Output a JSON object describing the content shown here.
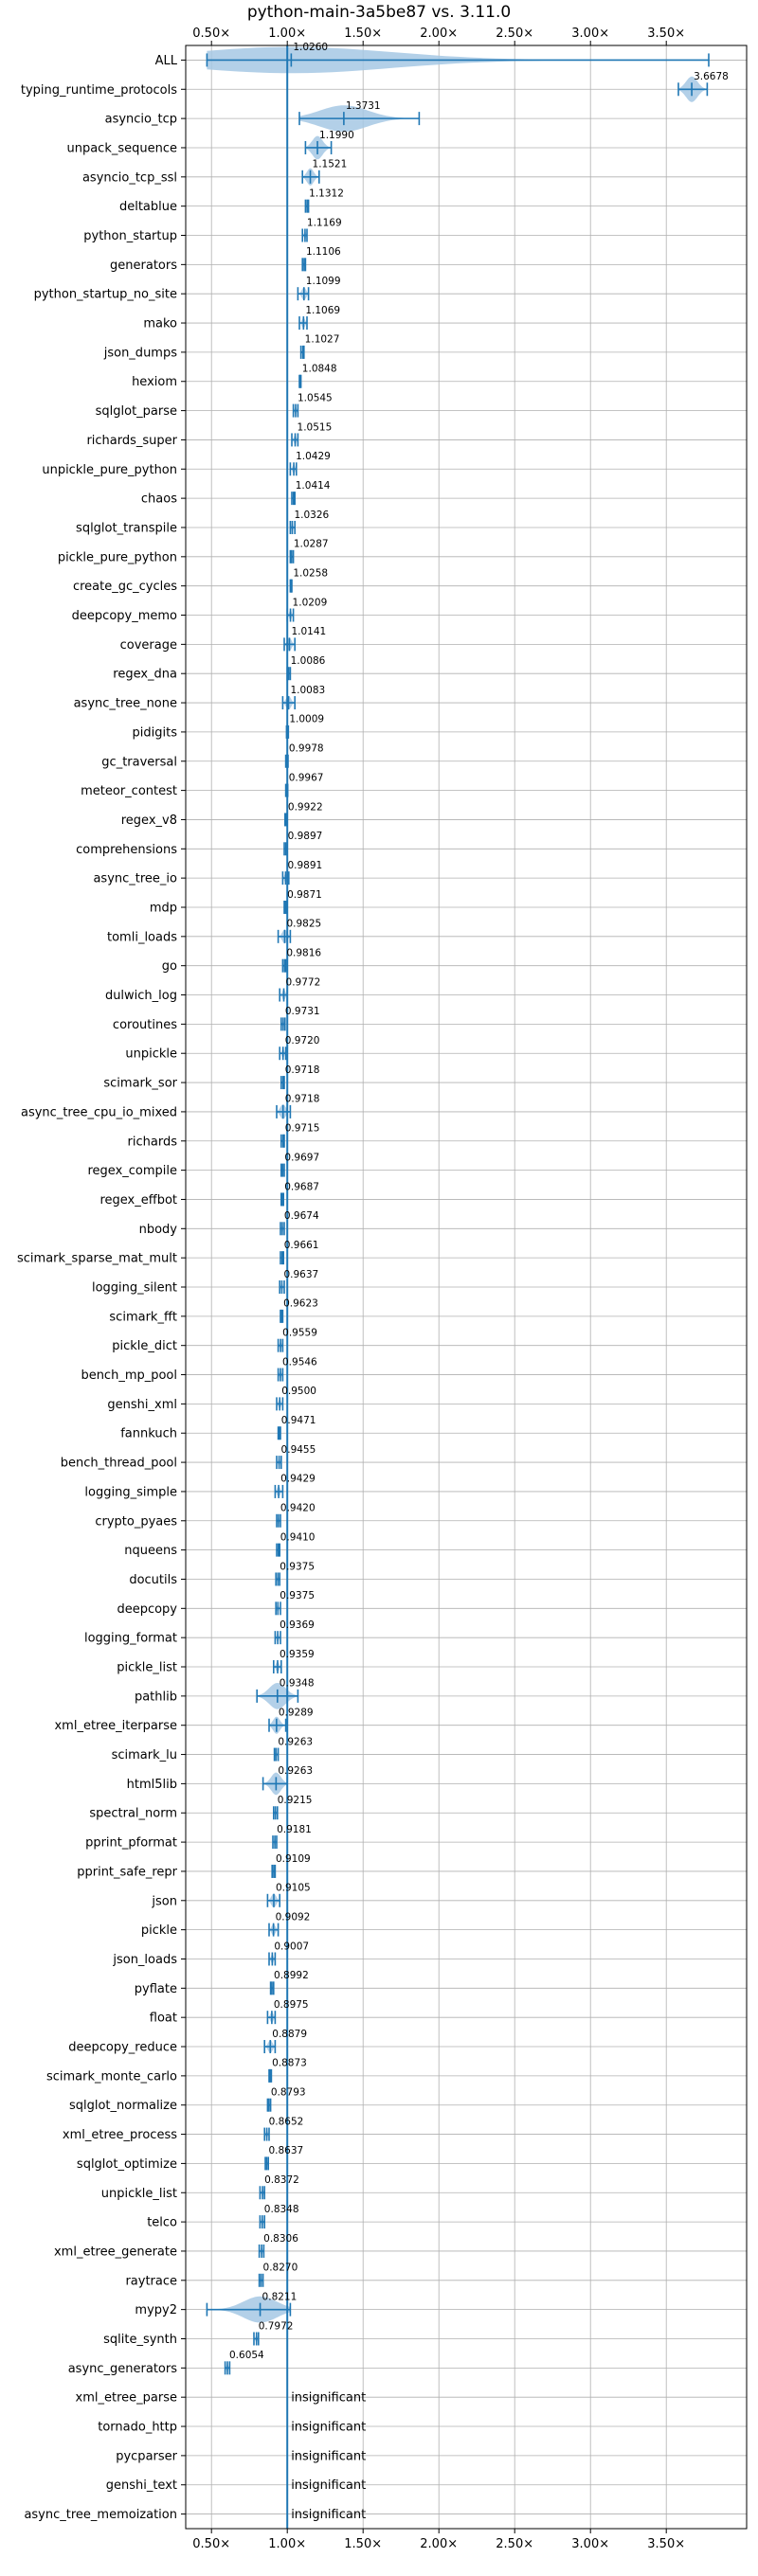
{
  "chart_data": {
    "type": "violin",
    "title": "python-main-3a5be87 vs. 3.11.0",
    "xlabel": "",
    "ylabel": "",
    "x_ticks": [
      0.5,
      1.0,
      1.5,
      2.0,
      2.5,
      3.0,
      3.5
    ],
    "x_tick_labels": [
      "0.50×",
      "1.00×",
      "1.50×",
      "2.00×",
      "2.50×",
      "3.00×",
      "3.50×"
    ],
    "xlim": [
      0.33,
      4.03
    ],
    "reference_line": 1.0,
    "grid": true,
    "colors": {
      "series": "#1f77b4",
      "violin_fill": "#a6c8e4",
      "grid": "#b0b0b0"
    },
    "benchmarks": [
      {
        "name": "ALL",
        "label": "1.0260",
        "median": 1.026,
        "min": 0.47,
        "max": 3.78
      },
      {
        "name": "typing_runtime_protocols",
        "label": "3.6678",
        "median": 3.668,
        "min": 3.58,
        "max": 3.77
      },
      {
        "name": "asyncio_tcp",
        "label": "1.3731",
        "median": 1.373,
        "min": 1.08,
        "max": 1.87
      },
      {
        "name": "unpack_sequence",
        "label": "1.1990",
        "median": 1.199,
        "min": 1.12,
        "max": 1.29
      },
      {
        "name": "asyncio_tcp_ssl",
        "label": "1.1521",
        "median": 1.152,
        "min": 1.1,
        "max": 1.21
      },
      {
        "name": "deltablue",
        "label": "1.1312",
        "median": 1.131,
        "min": 1.12,
        "max": 1.14
      },
      {
        "name": "python_startup",
        "label": "1.1169",
        "median": 1.117,
        "min": 1.1,
        "max": 1.13
      },
      {
        "name": "generators",
        "label": "1.1106",
        "median": 1.111,
        "min": 1.1,
        "max": 1.12
      },
      {
        "name": "python_startup_no_site",
        "label": "1.1099",
        "median": 1.11,
        "min": 1.07,
        "max": 1.14
      },
      {
        "name": "mako",
        "label": "1.1069",
        "median": 1.107,
        "min": 1.08,
        "max": 1.13
      },
      {
        "name": "json_dumps",
        "label": "1.1027",
        "median": 1.103,
        "min": 1.09,
        "max": 1.11
      },
      {
        "name": "hexiom",
        "label": "1.0848",
        "median": 1.085,
        "min": 1.08,
        "max": 1.09
      },
      {
        "name": "sqlglot_parse",
        "label": "1.0545",
        "median": 1.055,
        "min": 1.04,
        "max": 1.07
      },
      {
        "name": "richards_super",
        "label": "1.0515",
        "median": 1.052,
        "min": 1.03,
        "max": 1.07
      },
      {
        "name": "unpickle_pure_python",
        "label": "1.0429",
        "median": 1.043,
        "min": 1.02,
        "max": 1.06
      },
      {
        "name": "chaos",
        "label": "1.0414",
        "median": 1.041,
        "min": 1.03,
        "max": 1.05
      },
      {
        "name": "sqlglot_transpile",
        "label": "1.0326",
        "median": 1.033,
        "min": 1.02,
        "max": 1.05
      },
      {
        "name": "pickle_pure_python",
        "label": "1.0287",
        "median": 1.029,
        "min": 1.02,
        "max": 1.04
      },
      {
        "name": "create_gc_cycles",
        "label": "1.0258",
        "median": 1.026,
        "min": 1.02,
        "max": 1.03
      },
      {
        "name": "deepcopy_memo",
        "label": "1.0209",
        "median": 1.021,
        "min": 1.0,
        "max": 1.04
      },
      {
        "name": "coverage",
        "label": "1.0141",
        "median": 1.014,
        "min": 0.98,
        "max": 1.05
      },
      {
        "name": "regex_dna",
        "label": "1.0086",
        "median": 1.009,
        "min": 1.0,
        "max": 1.02
      },
      {
        "name": "async_tree_none",
        "label": "1.0083",
        "median": 1.008,
        "min": 0.97,
        "max": 1.05
      },
      {
        "name": "pidigits",
        "label": "1.0009",
        "median": 1.001,
        "min": 0.995,
        "max": 1.007
      },
      {
        "name": "gc_traversal",
        "label": "0.9978",
        "median": 0.998,
        "min": 0.99,
        "max": 1.005
      },
      {
        "name": "meteor_contest",
        "label": "0.9967",
        "median": 0.997,
        "min": 0.99,
        "max": 1.003
      },
      {
        "name": "regex_v8",
        "label": "0.9922",
        "median": 0.992,
        "min": 0.985,
        "max": 1.0
      },
      {
        "name": "comprehensions",
        "label": "0.9897",
        "median": 0.99,
        "min": 0.98,
        "max": 1.0
      },
      {
        "name": "async_tree_io",
        "label": "0.9891",
        "median": 0.989,
        "min": 0.97,
        "max": 1.01
      },
      {
        "name": "mdp",
        "label": "0.9871",
        "median": 0.987,
        "min": 0.98,
        "max": 0.995
      },
      {
        "name": "tomli_loads",
        "label": "0.9825",
        "median": 0.983,
        "min": 0.94,
        "max": 1.02
      },
      {
        "name": "go",
        "label": "0.9816",
        "median": 0.982,
        "min": 0.97,
        "max": 0.99
      },
      {
        "name": "dulwich_log",
        "label": "0.9772",
        "median": 0.977,
        "min": 0.95,
        "max": 1.0
      },
      {
        "name": "coroutines",
        "label": "0.9731",
        "median": 0.973,
        "min": 0.96,
        "max": 0.985
      },
      {
        "name": "unpickle",
        "label": "0.9720",
        "median": 0.972,
        "min": 0.95,
        "max": 0.99
      },
      {
        "name": "scimark_sor",
        "label": "0.9718",
        "median": 0.972,
        "min": 0.96,
        "max": 0.98
      },
      {
        "name": "async_tree_cpu_io_mixed",
        "label": "0.9718",
        "median": 0.972,
        "min": 0.93,
        "max": 1.02
      },
      {
        "name": "richards",
        "label": "0.9715",
        "median": 0.972,
        "min": 0.96,
        "max": 0.98
      },
      {
        "name": "regex_compile",
        "label": "0.9697",
        "median": 0.97,
        "min": 0.96,
        "max": 0.98
      },
      {
        "name": "regex_effbot",
        "label": "0.9687",
        "median": 0.969,
        "min": 0.96,
        "max": 0.975
      },
      {
        "name": "nbody",
        "label": "0.9674",
        "median": 0.967,
        "min": 0.955,
        "max": 0.98
      },
      {
        "name": "scimark_sparse_mat_mult",
        "label": "0.9661",
        "median": 0.966,
        "min": 0.955,
        "max": 0.975
      },
      {
        "name": "logging_silent",
        "label": "0.9637",
        "median": 0.964,
        "min": 0.95,
        "max": 0.98
      },
      {
        "name": "scimark_fft",
        "label": "0.9623",
        "median": 0.962,
        "min": 0.955,
        "max": 0.97
      },
      {
        "name": "pickle_dict",
        "label": "0.9559",
        "median": 0.956,
        "min": 0.94,
        "max": 0.97
      },
      {
        "name": "bench_mp_pool",
        "label": "0.9546",
        "median": 0.955,
        "min": 0.94,
        "max": 0.97
      },
      {
        "name": "genshi_xml",
        "label": "0.9500",
        "median": 0.95,
        "min": 0.93,
        "max": 0.97
      },
      {
        "name": "fannkuch",
        "label": "0.9471",
        "median": 0.947,
        "min": 0.94,
        "max": 0.955
      },
      {
        "name": "bench_thread_pool",
        "label": "0.9455",
        "median": 0.946,
        "min": 0.93,
        "max": 0.96
      },
      {
        "name": "logging_simple",
        "label": "0.9429",
        "median": 0.943,
        "min": 0.92,
        "max": 0.97
      },
      {
        "name": "crypto_pyaes",
        "label": "0.9420",
        "median": 0.942,
        "min": 0.93,
        "max": 0.955
      },
      {
        "name": "nqueens",
        "label": "0.9410",
        "median": 0.941,
        "min": 0.93,
        "max": 0.95
      },
      {
        "name": "docutils",
        "label": "0.9375",
        "median": 0.938,
        "min": 0.925,
        "max": 0.95
      },
      {
        "name": "deepcopy",
        "label": "0.9375",
        "median": 0.938,
        "min": 0.925,
        "max": 0.955
      },
      {
        "name": "logging_format",
        "label": "0.9369",
        "median": 0.937,
        "min": 0.92,
        "max": 0.955
      },
      {
        "name": "pickle_list",
        "label": "0.9359",
        "median": 0.936,
        "min": 0.91,
        "max": 0.96
      },
      {
        "name": "pathlib",
        "label": "0.9348",
        "median": 0.935,
        "min": 0.8,
        "max": 1.07
      },
      {
        "name": "xml_etree_iterparse",
        "label": "0.9289",
        "median": 0.929,
        "min": 0.88,
        "max": 0.99
      },
      {
        "name": "scimark_lu",
        "label": "0.9263",
        "median": 0.926,
        "min": 0.915,
        "max": 0.94
      },
      {
        "name": "html5lib",
        "label": "0.9263",
        "median": 0.926,
        "min": 0.84,
        "max": 1.0
      },
      {
        "name": "spectral_norm",
        "label": "0.9215",
        "median": 0.922,
        "min": 0.91,
        "max": 0.935
      },
      {
        "name": "pprint_pformat",
        "label": "0.9181",
        "median": 0.918,
        "min": 0.905,
        "max": 0.93
      },
      {
        "name": "pprint_safe_repr",
        "label": "0.9109",
        "median": 0.911,
        "min": 0.9,
        "max": 0.92
      },
      {
        "name": "json",
        "label": "0.9105",
        "median": 0.911,
        "min": 0.87,
        "max": 0.95
      },
      {
        "name": "pickle",
        "label": "0.9092",
        "median": 0.909,
        "min": 0.88,
        "max": 0.94
      },
      {
        "name": "json_loads",
        "label": "0.9007",
        "median": 0.901,
        "min": 0.88,
        "max": 0.92
      },
      {
        "name": "pyflate",
        "label": "0.8992",
        "median": 0.899,
        "min": 0.89,
        "max": 0.91
      },
      {
        "name": "float",
        "label": "0.8975",
        "median": 0.898,
        "min": 0.87,
        "max": 0.92
      },
      {
        "name": "deepcopy_reduce",
        "label": "0.8879",
        "median": 0.888,
        "min": 0.85,
        "max": 0.92
      },
      {
        "name": "scimark_monte_carlo",
        "label": "0.8873",
        "median": 0.887,
        "min": 0.88,
        "max": 0.895
      },
      {
        "name": "sqlglot_normalize",
        "label": "0.8793",
        "median": 0.879,
        "min": 0.87,
        "max": 0.89
      },
      {
        "name": "xml_etree_process",
        "label": "0.8652",
        "median": 0.865,
        "min": 0.85,
        "max": 0.88
      },
      {
        "name": "sqlglot_optimize",
        "label": "0.8637",
        "median": 0.864,
        "min": 0.855,
        "max": 0.875
      },
      {
        "name": "unpickle_list",
        "label": "0.8372",
        "median": 0.837,
        "min": 0.82,
        "max": 0.85
      },
      {
        "name": "telco",
        "label": "0.8348",
        "median": 0.835,
        "min": 0.82,
        "max": 0.85
      },
      {
        "name": "xml_etree_generate",
        "label": "0.8306",
        "median": 0.831,
        "min": 0.815,
        "max": 0.845
      },
      {
        "name": "raytrace",
        "label": "0.8270",
        "median": 0.827,
        "min": 0.815,
        "max": 0.84
      },
      {
        "name": "mypy2",
        "label": "0.8211",
        "median": 0.821,
        "min": 0.47,
        "max": 1.02
      },
      {
        "name": "sqlite_synth",
        "label": "0.7972",
        "median": 0.797,
        "min": 0.78,
        "max": 0.81
      },
      {
        "name": "async_generators",
        "label": "0.6054",
        "median": 0.605,
        "min": 0.59,
        "max": 0.62
      },
      {
        "name": "xml_etree_parse",
        "label": "insignificant"
      },
      {
        "name": "tornado_http",
        "label": "insignificant"
      },
      {
        "name": "pycparser",
        "label": "insignificant"
      },
      {
        "name": "genshi_text",
        "label": "insignificant"
      },
      {
        "name": "async_tree_memoization",
        "label": "insignificant"
      }
    ]
  }
}
